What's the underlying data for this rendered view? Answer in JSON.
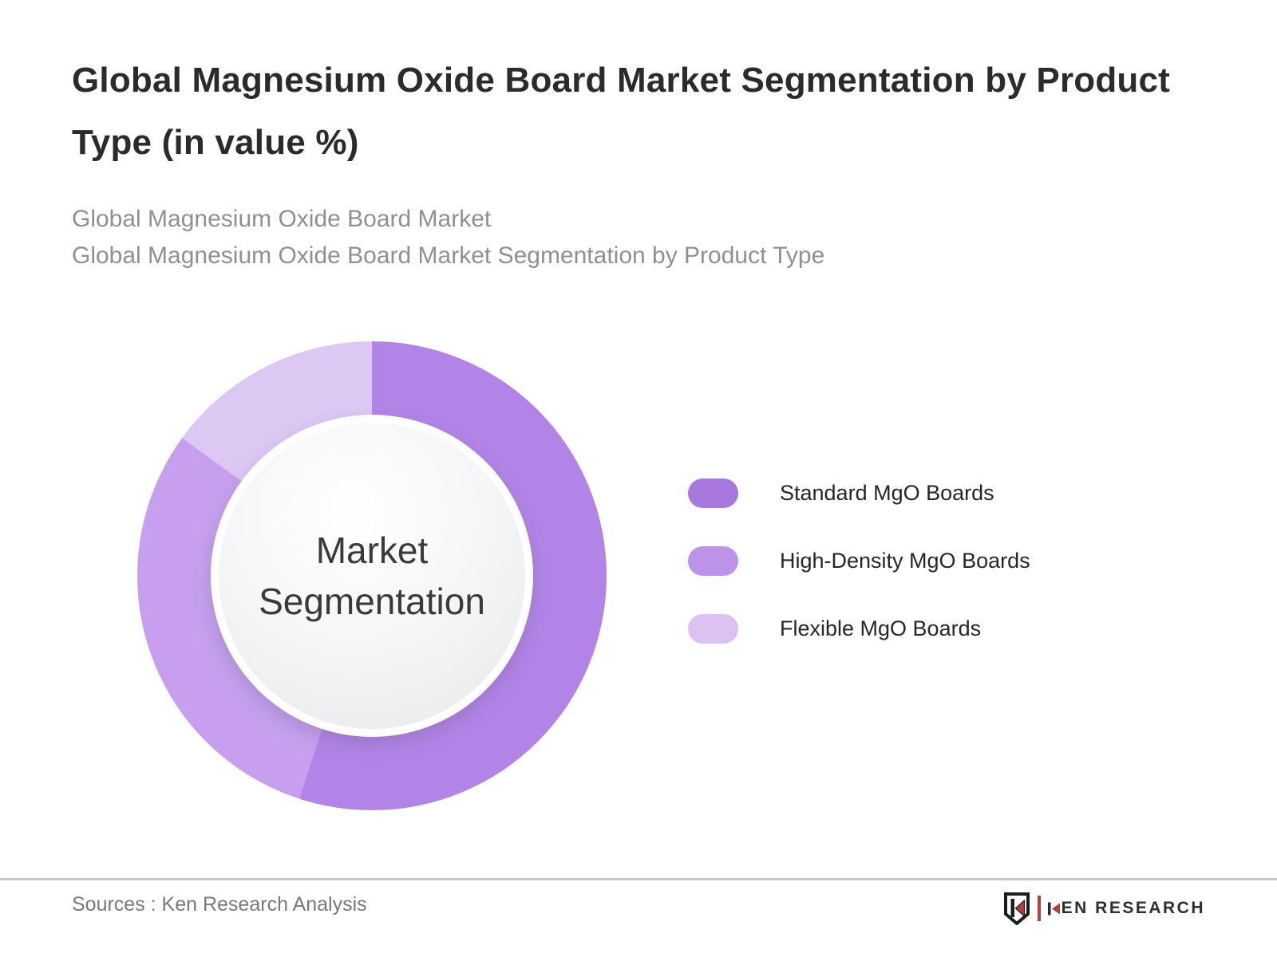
{
  "header": {
    "title": "Global Magnesium Oxide Board Market Segmentation by Product Type (in value %)",
    "subtitle_lines": [
      "Global Magnesium Oxide Board Market",
      "Global Magnesium Oxide Board Market Segmentation by Product Type"
    ]
  },
  "chart_data": {
    "type": "pie",
    "variant": "donut",
    "title": "Global Magnesium Oxide Board Market Segmentation by Product Type (in value %)",
    "center_label_lines": [
      "Market",
      "Segmentation"
    ],
    "labels": [
      "Standard MgO Boards",
      "High-Density MgO Boards",
      "Flexible MgO Boards"
    ],
    "values": [
      55,
      30,
      15
    ],
    "unit": "%",
    "start_angle_deg": 0,
    "direction": "clockwise",
    "legend_position": "right",
    "slice_colors": [
      "#b284e7",
      "#c6a0ee",
      "#ddc8f4"
    ],
    "legend_swatch_colors": [
      "#a978df",
      "#bd93e9",
      "#dbc2f3"
    ]
  },
  "footer": {
    "source_note": "Sources : Ken Research Analysis",
    "brand": {
      "name": "KEN RESEARCH",
      "text_after_k": "EN RESEARCH",
      "accent_color": "#b2403d",
      "text_color": "#2e2e2e"
    }
  }
}
